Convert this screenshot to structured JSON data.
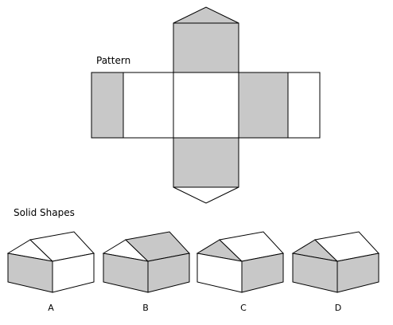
{
  "pattern_label": "Pattern",
  "solids_label": "Solid Shapes",
  "colors": {
    "shaded": "#c8c8c8",
    "unshaded": "#ffffff",
    "outline": "#000000"
  },
  "options": [
    {
      "letter": "A",
      "shaded": [
        "front"
      ]
    },
    {
      "letter": "B",
      "shaded": [
        "roof-right",
        "front",
        "side"
      ]
    },
    {
      "letter": "C",
      "shaded": [
        "roof-left",
        "side"
      ]
    },
    {
      "letter": "D",
      "shaded": [
        "roof-left",
        "front",
        "side"
      ]
    }
  ]
}
